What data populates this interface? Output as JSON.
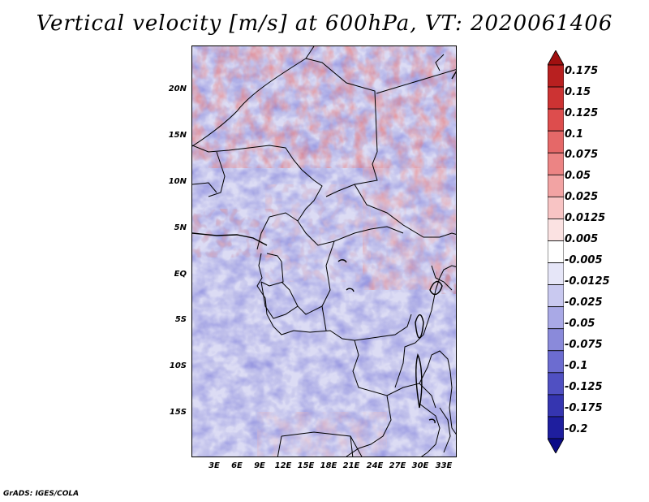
{
  "title": "Vertical velocity [m/s] at 600hPa, VT: 2020061406",
  "footer": "GrADS: IGES/COLA",
  "lat_labels": [
    "20N",
    "15N",
    "10N",
    "5N",
    "EQ",
    "5S",
    "10S",
    "15S"
  ],
  "lon_labels": [
    "3E",
    "6E",
    "9E",
    "12E",
    "15E",
    "18E",
    "21E",
    "24E",
    "27E",
    "30E",
    "33E"
  ],
  "colorbar": {
    "labels": [
      "0.175",
      "0.15",
      "0.125",
      "0.1",
      "0.075",
      "0.05",
      "0.025",
      "0.0125",
      "0.005",
      "-0.005",
      "-0.0125",
      "-0.025",
      "-0.05",
      "-0.075",
      "-0.1",
      "-0.125",
      "-0.175",
      "-0.2"
    ],
    "colors": [
      "#a01010",
      "#b82020",
      "#cc3333",
      "#dd4d4d",
      "#e56868",
      "#ec8484",
      "#f2a3a3",
      "#f8c4c4",
      "#fbe2e2",
      "#ffffff",
      "#e6e6f8",
      "#c9c9f0",
      "#a9a9e6",
      "#8a8ada",
      "#6c6cd0",
      "#5050c2",
      "#3535b0",
      "#1e1e9e",
      "#0c0c88"
    ]
  }
}
